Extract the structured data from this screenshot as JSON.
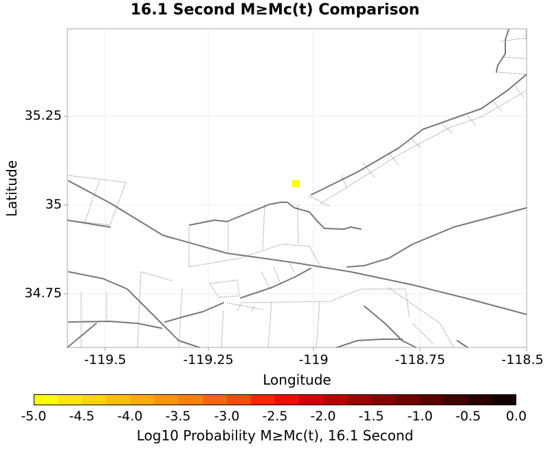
{
  "title": "16.1 Second M≥Mc(t) Comparison",
  "map": {
    "x_label": "Longitude",
    "y_label": "Latitude",
    "x_ticks": [
      "-119.5",
      "-119.25",
      "-119",
      "-118.75",
      "-118.5"
    ],
    "y_ticks": [
      "35.25",
      "35",
      "34.75"
    ],
    "lon_range": [
      -119.58,
      -118.5
    ],
    "lat_range": [
      34.66,
      35.48
    ],
    "fault_color": "#777777",
    "marker": {
      "lon": -119.05,
      "lat": 35.06,
      "color": "#ffff00"
    }
  },
  "colorbar": {
    "label": "Log10 Probability M≥Mc(t), 16.1 Second",
    "ticks": [
      "-5.0",
      "-4.5",
      "-4.0",
      "-3.5",
      "-3.0",
      "-2.5",
      "-2.0",
      "-1.5",
      "-1.0",
      "-0.5",
      "0.0"
    ],
    "colors": [
      "#ffff00",
      "#ffe800",
      "#ffd400",
      "#ffbe00",
      "#ffaa00",
      "#ff9400",
      "#ff7f00",
      "#ff6600",
      "#ff4a00",
      "#ff2400",
      "#ee0e00",
      "#d20000",
      "#b70000",
      "#9d0000",
      "#860000",
      "#6f0000",
      "#5b0000",
      "#430000",
      "#2c0000",
      "#150000"
    ]
  }
}
